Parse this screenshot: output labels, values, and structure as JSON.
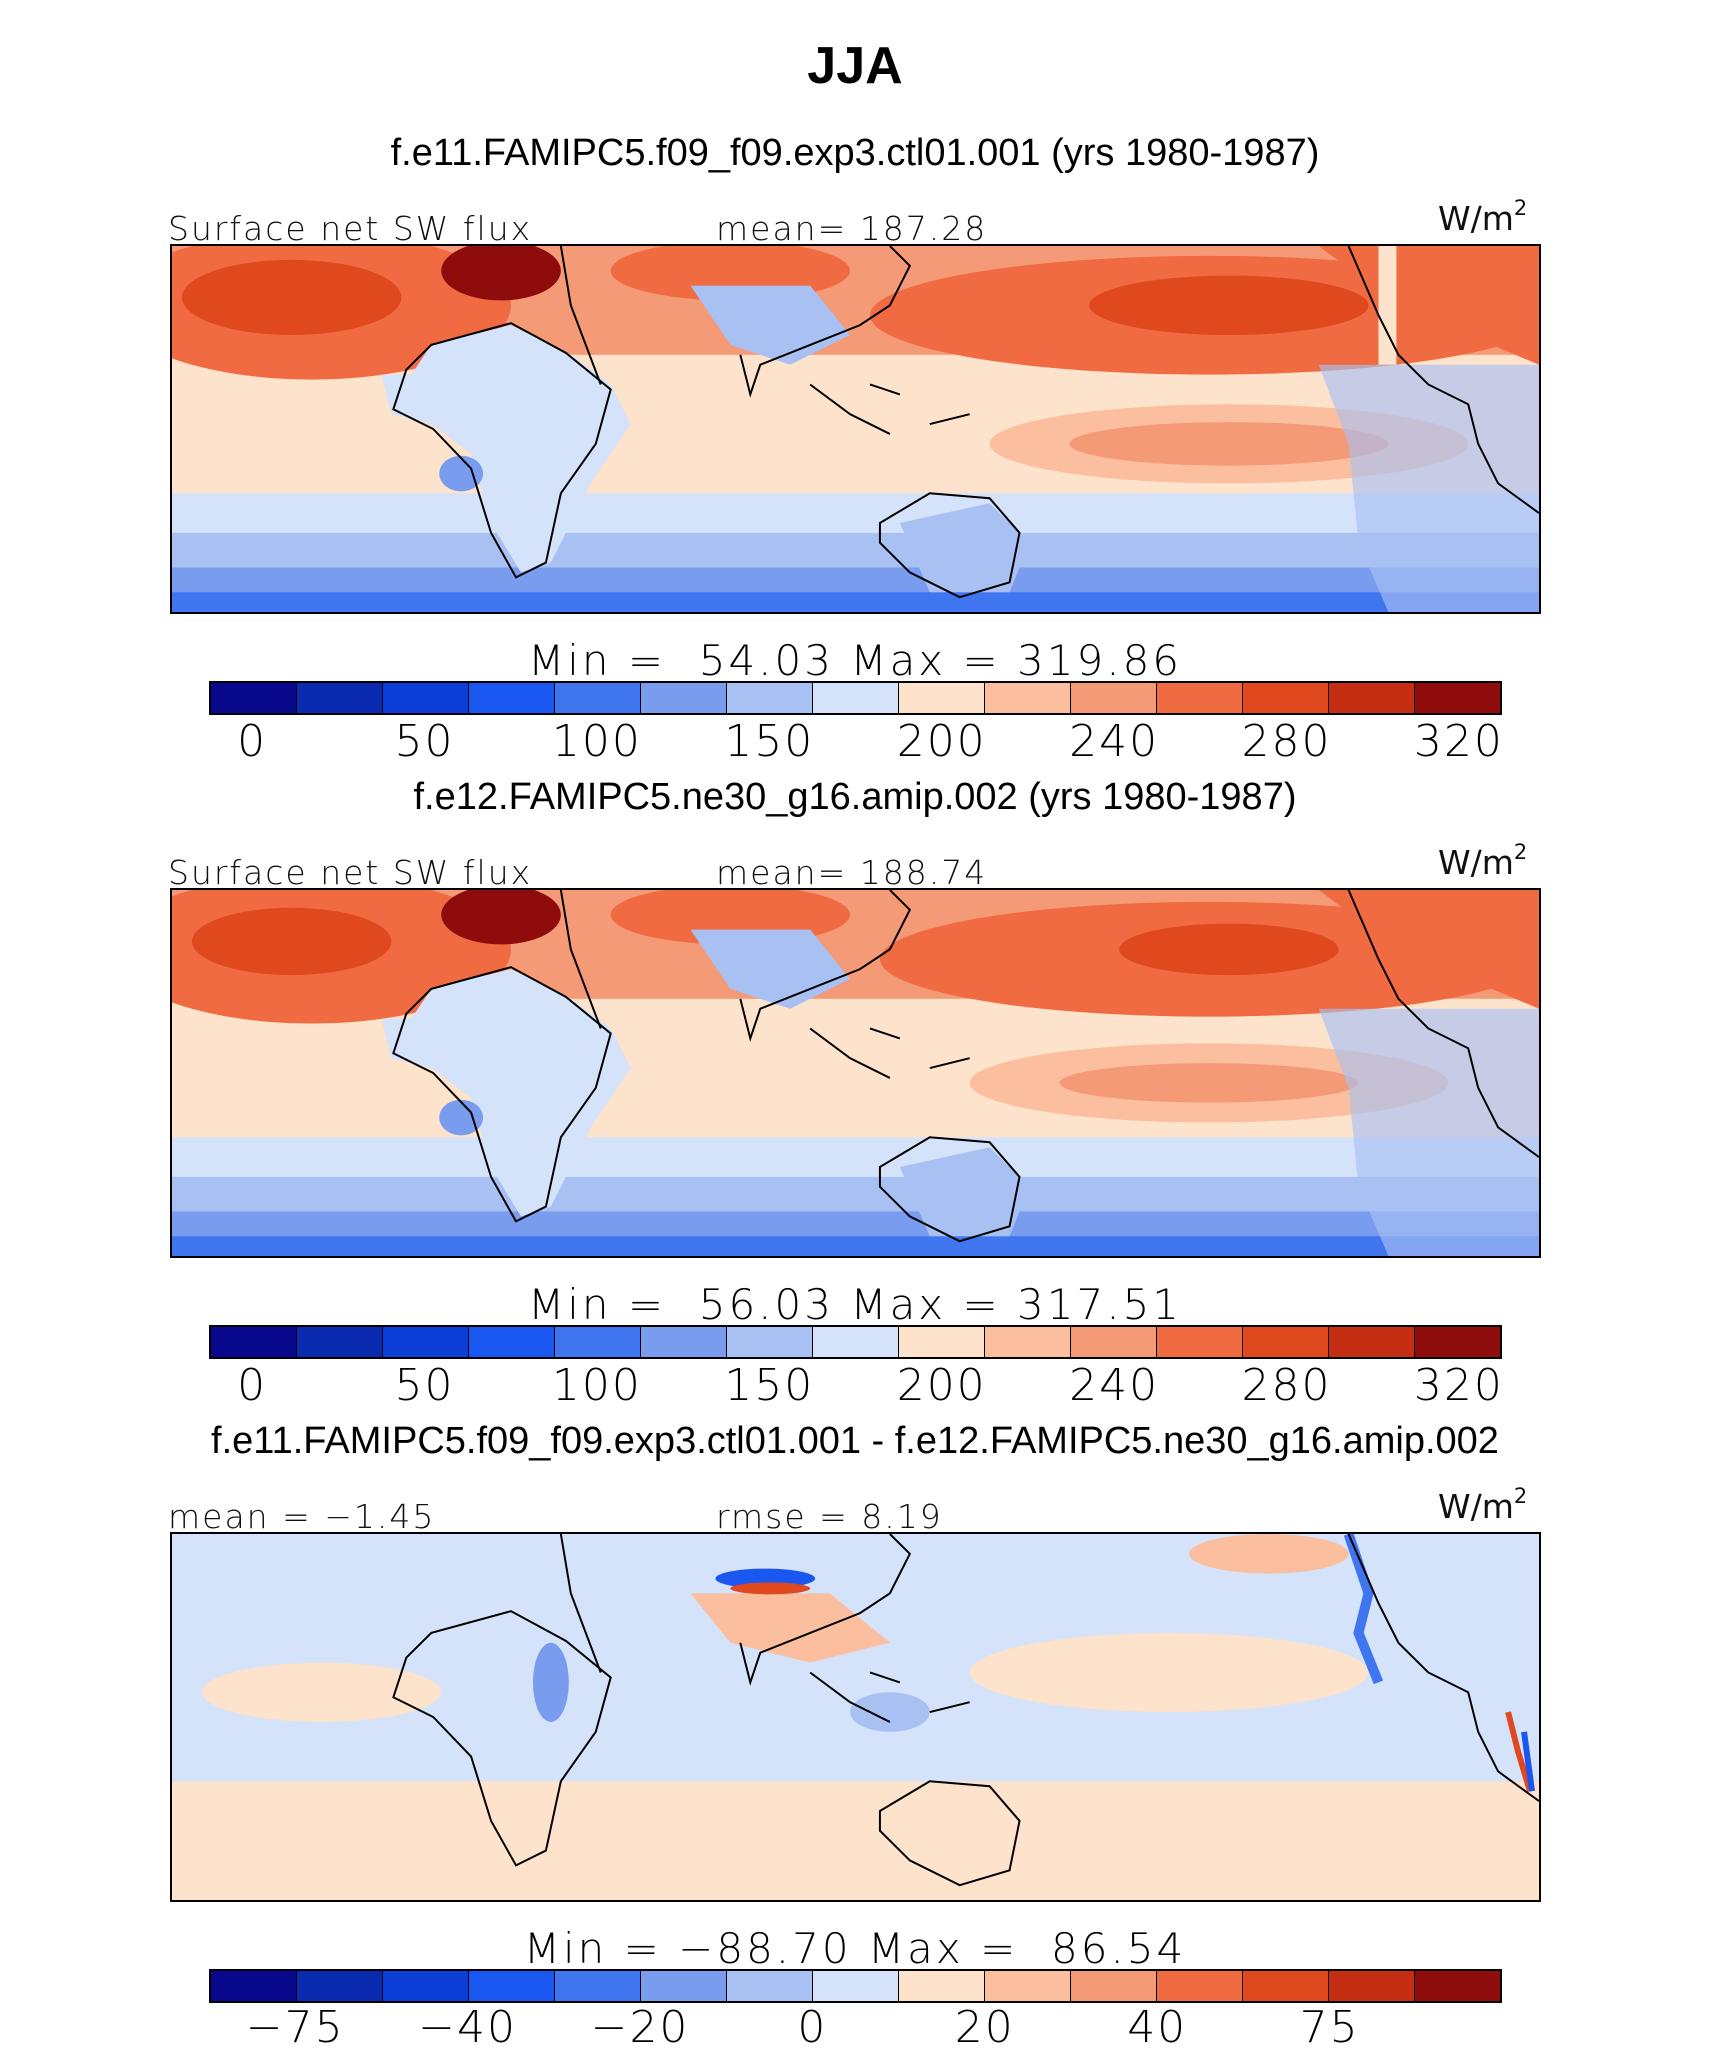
{
  "title": "JJA",
  "panels": [
    {
      "title": "f.e11.FAMIPC5.f09_f09.exp3.ctl01.001 (yrs 1980-1987)",
      "left_label": "Surface net SW flux",
      "center_label": "mean= 187.28",
      "units": "W/m",
      "units_sup": "2",
      "minmax": "Min =  54.03 Max = 319.86",
      "colorbar_ticks": [
        "0",
        "50",
        "100",
        "150",
        "200",
        "240",
        "280",
        "320"
      ]
    },
    {
      "title": "f.e12.FAMIPC5.ne30_g16.amip.002 (yrs 1980-1987)",
      "left_label": "Surface net SW flux",
      "center_label": "mean= 188.74",
      "units": "W/m",
      "units_sup": "2",
      "minmax": "Min =  56.03 Max = 317.51",
      "colorbar_ticks": [
        "0",
        "50",
        "100",
        "150",
        "200",
        "240",
        "280",
        "320"
      ]
    },
    {
      "title": "f.e11.FAMIPC5.f09_f09.exp3.ctl01.001 - f.e12.FAMIPC5.ne30_g16.amip.002",
      "left_label": "mean =  −1.45",
      "center_label": "rmse =   8.19",
      "units": "W/m",
      "units_sup": "2",
      "minmax": "Min = −88.70 Max =  86.54",
      "colorbar_ticks": [
        "−75",
        "−40",
        "−20",
        "0",
        "20",
        "40",
        "75"
      ]
    }
  ],
  "colorbar_colors": [
    "#08088c",
    "#0a2ab0",
    "#0c3fd8",
    "#1a56f0",
    "#3f76f0",
    "#7a9cee",
    "#a9c0f2",
    "#d4e3fa",
    "#fde2cc",
    "#fbbf9f",
    "#f59a76",
    "#f06a42",
    "#e0481e",
    "#c42d12",
    "#8e0c0c"
  ]
}
